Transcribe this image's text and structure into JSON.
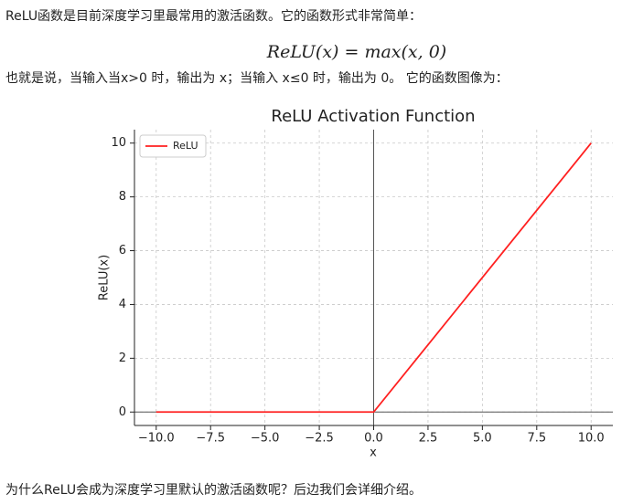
{
  "paragraphs": [
    "ReLU函数是目前深度学习里最常用的激活函数。它的函数形式非常简单：",
    "也就是说，当输入当x>0 时，输出为 x；当输入 x≤0 时，输出为 0。 它的函数图像为：",
    "为什么ReLU会成为深度学习里默认的激活函数呢？后边我们会详细介绍。"
  ],
  "formula": "ReLU(x) = max(x, 0)",
  "chart_data": {
    "type": "line",
    "title": "ReLU Activation Function",
    "x_label": "x",
    "y_label": "ReLU(x)",
    "x": [
      -10,
      0,
      10
    ],
    "series": [
      {
        "name": "ReLU",
        "color": "#ff2020",
        "values": [
          0,
          0,
          10
        ]
      }
    ],
    "xlim": [
      -11,
      11
    ],
    "ylim": [
      -0.5,
      10.5
    ],
    "xticks": [
      {
        "value": -10,
        "label": "−10.0"
      },
      {
        "value": -7.5,
        "label": "−7.5"
      },
      {
        "value": -5,
        "label": "−5.0"
      },
      {
        "value": -2.5,
        "label": "−2.5"
      },
      {
        "value": 0,
        "label": "0.0"
      },
      {
        "value": 2.5,
        "label": "2.5"
      },
      {
        "value": 5,
        "label": "5.0"
      },
      {
        "value": 7.5,
        "label": "7.5"
      },
      {
        "value": 10,
        "label": "10.0"
      }
    ],
    "yticks": [
      0,
      2,
      4,
      6,
      8,
      10
    ],
    "grid": true,
    "legend": "upper left",
    "axhline": 0,
    "axvline": 0
  }
}
